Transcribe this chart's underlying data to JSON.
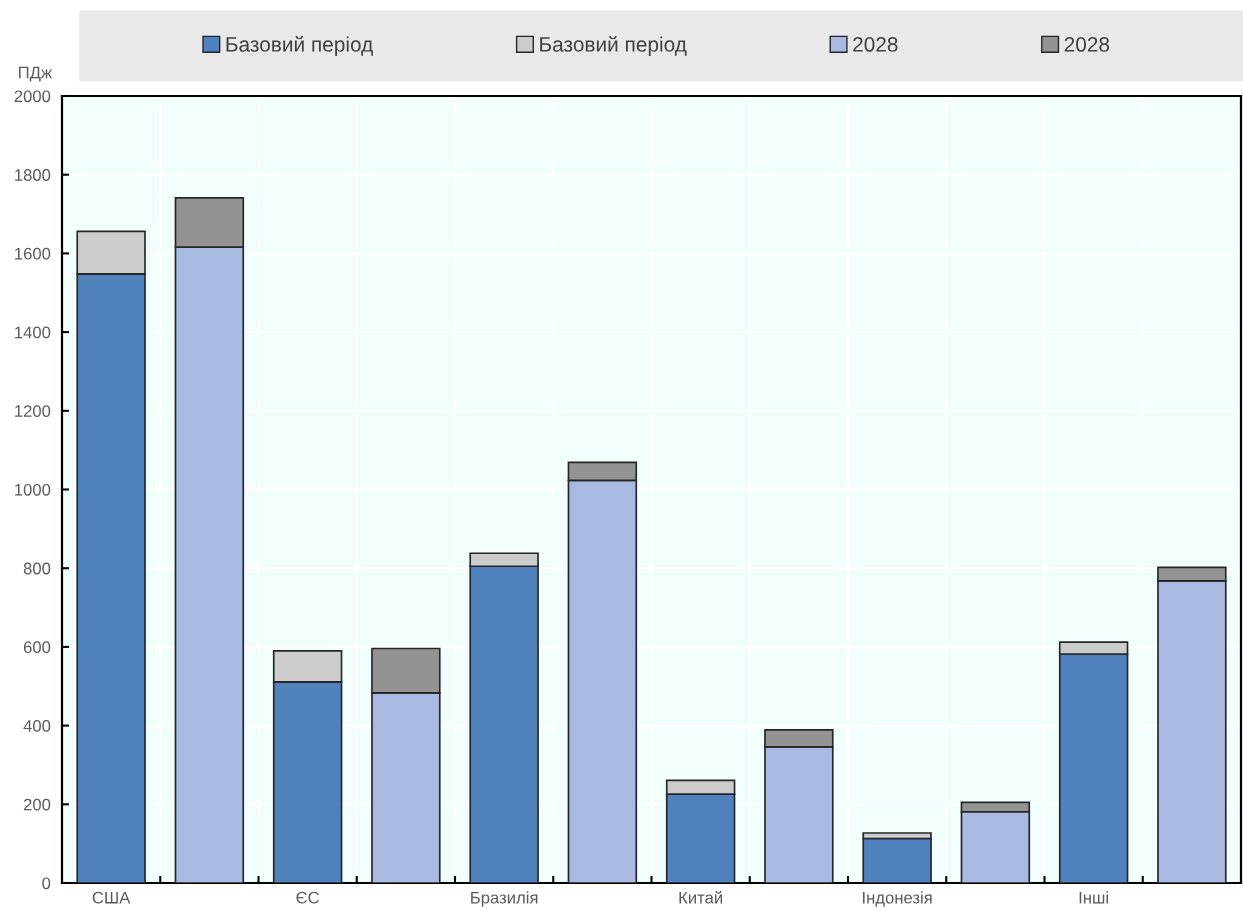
{
  "chart_data": {
    "type": "bar",
    "ylabel": "ПДж",
    "categories": [
      "США",
      null,
      "ЄС",
      null,
      "Бразилія",
      null,
      "Китай",
      null,
      "Індонезія",
      null,
      "Інші",
      null
    ],
    "series": [
      {
        "name": "Базовий період",
        "color": "#4f81bd",
        "values": [
          1548,
          null,
          511,
          null,
          805,
          null,
          226,
          null,
          113,
          null,
          582,
          null
        ]
      },
      {
        "name": "Базовий період",
        "color": "#cccccc",
        "values": [
          108,
          null,
          79,
          null,
          33,
          null,
          35,
          null,
          14,
          null,
          30,
          null
        ]
      },
      {
        "name": "2028",
        "color": "#a9b9e2",
        "values": [
          null,
          1616,
          null,
          483,
          null,
          1023,
          null,
          346,
          null,
          181,
          null,
          768
        ]
      },
      {
        "name": "2028",
        "color": "#939393",
        "values": [
          null,
          125,
          null,
          113,
          null,
          46,
          null,
          43,
          null,
          24,
          null,
          34
        ]
      }
    ],
    "stacked": true,
    "ylim": [
      0,
      2000
    ],
    "yticks": [
      0,
      200,
      400,
      600,
      800,
      1000,
      1200,
      1400,
      1600,
      1800,
      2000
    ],
    "grid": true,
    "legend": "top"
  }
}
